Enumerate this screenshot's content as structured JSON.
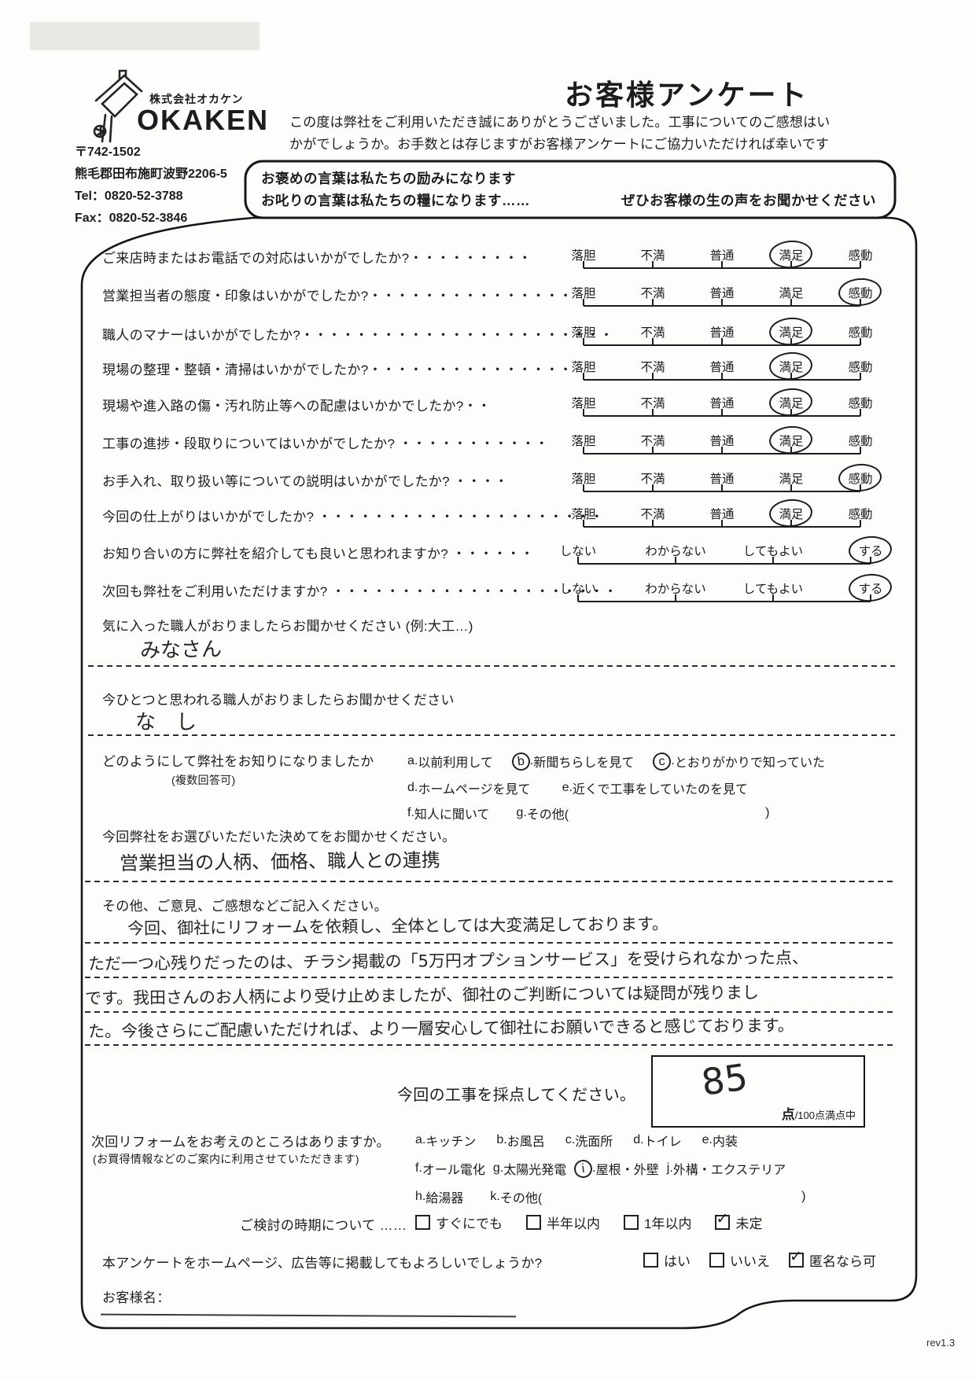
{
  "header": {
    "title": "お客様アンケート",
    "intro_line1": "この度は弊社をご利用いただき誠にありがとうございました。工事についてのご感想はい",
    "intro_line2": "かがでしょうか。お手数とは存じますがお客様アンケートにご協力いただければ幸いです",
    "callout_line1": "お褒めの言葉は私たちの励みになります",
    "callout_line2a": "お叱りの言葉は私たちの糧になります……",
    "callout_line2b": "ぜひお客様の生の声をお聞かせください"
  },
  "company": {
    "name_small": "株式会社オカケン",
    "name_large": "OKAKEN",
    "postal": "〒742-1502",
    "address": "熊毛郡田布施町波野2206-5",
    "tel": "Tel：0820-52-3788",
    "fax": "Fax：0820-52-3846"
  },
  "survey": {
    "scale5": [
      "落胆",
      "不満",
      "普通",
      "満足",
      "感動"
    ],
    "scale4": [
      "しない",
      "わからない",
      "してもよい",
      "する"
    ],
    "rows": [
      {
        "q": "ご来店時またはお電話での対応はいかがでしたか?・・・・・・・・・",
        "scale": "scale5",
        "answer": "満足"
      },
      {
        "q": "営業担当者の態度・印象はいかがでしたか?・・・・・・・・・・・・・・・",
        "scale": "scale5",
        "answer": "感動"
      },
      {
        "q": "職人のマナーはいかがでしたか?・・・・・・・・・・・・・・・・・・・・・・・",
        "scale": "scale5",
        "answer": "満足"
      },
      {
        "q": "現場の整理・整頓・清掃はいかがでしたか?・・・・・・・・・・・・・・・",
        "scale": "scale5",
        "answer": "満足"
      },
      {
        "q": "現場や進入路の傷・汚れ防止等への配慮はいかかでしたか?・・",
        "scale": "scale5",
        "answer": "満足"
      },
      {
        "q": "工事の進捗・段取りについてはいかがでしたか? ・・・・・・・・・・・",
        "scale": "scale5",
        "answer": "満足"
      },
      {
        "q": "お手入れ、取り扱い等についての説明はいかがでしたか? ・・・・",
        "scale": "scale5",
        "answer": "感動"
      },
      {
        "q": "今回の仕上がりはいかがでしたか? ・・・・・・・・・・・・・・・・・・・・・",
        "scale": "scale5",
        "answer": "満足"
      },
      {
        "q": "お知り合いの方に弊社を紹介しても良いと思われますか? ・・・・・・",
        "scale": "scale4",
        "answer": "する"
      },
      {
        "q": "次回も弊社をご利用いただけますか? ・・・・・・・・・・・・・・・・・・・・・",
        "scale": "scale4",
        "answer": "する"
      }
    ]
  },
  "free_answers": {
    "favorite_label": "気に入った職人がおりましたらお聞かせください (例:大工…)",
    "favorite_value": "みなさん",
    "regret_label": "今ひとつと思われる職人がおりましたらお聞かせください",
    "regret_value": "な　し"
  },
  "known_from": {
    "label": "どのようにして弊社をお知りになりましたか",
    "note": "(複数回答可)",
    "lines": [
      [
        {
          "letter": "a",
          "text": "以前利用して",
          "circled": false
        },
        {
          "letter": "b",
          "text": "新聞ちらしを見て",
          "circled": true
        },
        {
          "letter": "c",
          "text": "とおりがかりで知っていた",
          "circled": true
        }
      ],
      [
        {
          "letter": "d",
          "text": "ホームページを見て",
          "circled": false
        },
        {
          "letter": "e",
          "text": "近くで工事をしていたのを見て",
          "circled": false
        }
      ],
      [
        {
          "letter": "f",
          "text": "知人に聞いて",
          "circled": false
        },
        {
          "letter": "g",
          "text": "その他(",
          "circled": false,
          "paren": ")",
          "paren_gap": 250
        }
      ]
    ]
  },
  "reason": {
    "label": "今回弊社をお選びいただいた決めてをお聞かせください。",
    "value": "営業担当の人柄、価格、職人との連携"
  },
  "comments": {
    "label": "その他、ご意見、ご感想などご記入ください。",
    "lines": [
      "今回、御社にリフォームを依頼し、全体としては大変満足しております。",
      "ただ一つ心残りだったのは、チラシ掲載の「5万円オプションサービス」を受けられなかった点、",
      "です。我田さんのお人柄により受け止めましたが、御社のご判断については疑問が残りまし",
      "た。今後さらにご配慮いただければ、より一層安心して御社にお願いできると感じております。"
    ]
  },
  "score": {
    "label": "今回の工事を採点してください。",
    "value": "85",
    "unit_big": "点",
    "unit_small": "/100点満点中"
  },
  "next_reform": {
    "label": "次回リフォームをお考えのところはありますか。",
    "note": "(お買得情報などのご案内に利用させていただきます)",
    "lines": [
      [
        {
          "letter": "a",
          "text": "キッチン",
          "circled": false
        },
        {
          "letter": "b",
          "text": "お風呂",
          "circled": false
        },
        {
          "letter": "c",
          "text": "洗面所",
          "circled": false
        },
        {
          "letter": "d",
          "text": "トイレ",
          "circled": false
        },
        {
          "letter": "e",
          "text": "内装",
          "circled": false
        }
      ],
      [
        {
          "letter": "f",
          "text": "オール電化",
          "circled": false
        },
        {
          "letter": "g",
          "text": "太陽光発電",
          "circled": false
        },
        {
          "letter": "i",
          "text": "屋根・外壁",
          "circled": true
        },
        {
          "letter": "j",
          "text": "外構・エクステリア",
          "circled": false
        }
      ],
      [
        {
          "letter": "h",
          "text": "給湯器",
          "circled": false
        },
        {
          "letter": "k",
          "text": "その他(",
          "circled": false,
          "paren": ")",
          "paren_gap": 330
        }
      ]
    ]
  },
  "timing": {
    "label": "ご検討の時期について ……",
    "options": [
      {
        "text": "すぐにでも",
        "checked": false
      },
      {
        "text": "半年以内",
        "checked": false
      },
      {
        "text": "1年以内",
        "checked": false
      },
      {
        "text": "未定",
        "checked": true
      }
    ]
  },
  "publish": {
    "label": "本アンケートをホームページ、広告等に掲載してもよろしいでしょうか?",
    "options": [
      {
        "text": "はい",
        "checked": false
      },
      {
        "text": "いいえ",
        "checked": false
      },
      {
        "text": "匿名なら可",
        "checked": true
      }
    ]
  },
  "footer": {
    "customer_name_label": "お客様名：",
    "rev": "rev1.3"
  }
}
